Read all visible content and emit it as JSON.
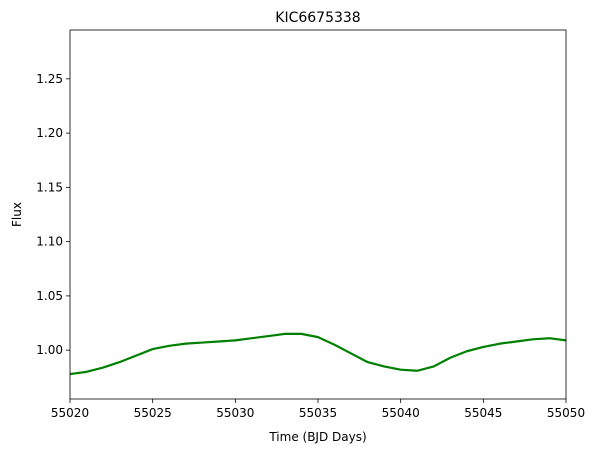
{
  "chart_data": {
    "type": "line",
    "title": "KIC6675338",
    "xlabel": "Time (BJD Days)",
    "ylabel": "Flux",
    "xlim": [
      55020,
      55050
    ],
    "ylim": [
      0.955,
      1.295
    ],
    "xticks": [
      55020,
      55025,
      55030,
      55035,
      55040,
      55045,
      55050
    ],
    "yticks": [
      1.0,
      1.05,
      1.1,
      1.15,
      1.2,
      1.25
    ],
    "ytick_labels": [
      "1.00",
      "1.05",
      "1.10",
      "1.15",
      "1.20",
      "1.25"
    ],
    "grid": false,
    "series": [
      {
        "color": "#008000",
        "x": [
          55020,
          55021,
          55022,
          55023,
          55024,
          55025,
          55026,
          55027,
          55028,
          55029,
          55030,
          55031,
          55032,
          55033,
          55034,
          55035,
          55036,
          55037,
          55038,
          55039,
          55040,
          55041,
          55042,
          55043,
          55044,
          55045,
          55046,
          55047,
          55048,
          55049,
          55050
        ],
        "y": [
          0.978,
          0.98,
          0.984,
          0.989,
          0.995,
          1.001,
          1.004,
          1.006,
          1.007,
          1.008,
          1.009,
          1.011,
          1.013,
          1.015,
          1.015,
          1.012,
          1.005,
          0.997,
          0.989,
          0.985,
          0.982,
          0.981,
          0.985,
          0.993,
          0.999,
          1.003,
          1.006,
          1.008,
          1.01,
          1.011,
          1.009
        ]
      }
    ]
  }
}
